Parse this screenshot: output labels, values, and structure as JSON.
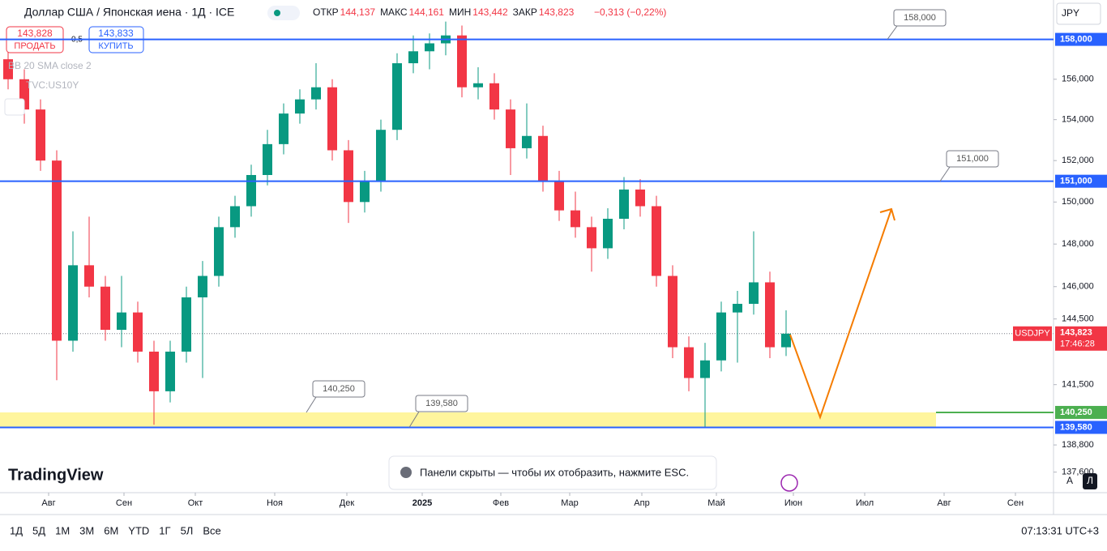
{
  "header": {
    "title": "Доллар США / Японская иена · 1Д · ICE",
    "stats": [
      {
        "label": "ОТКР",
        "value": "144,137"
      },
      {
        "label": "МАКС",
        "value": "144,161"
      },
      {
        "label": "МИН",
        "value": "143,442"
      },
      {
        "label": "ЗАКР",
        "value": "143,823"
      }
    ],
    "change": "−0,313 (−0,22%)",
    "sell": {
      "price": "143,828",
      "label": "ПРОДАТЬ"
    },
    "spread": "0,5",
    "buy": {
      "price": "143,833",
      "label": "КУПИТЬ"
    },
    "indicators": [
      "BB 20 SMA close 2",
      "TVC:US10Y"
    ],
    "currency": "JPY"
  },
  "toolbar": {
    "ranges": [
      "1Д",
      "5Д",
      "1М",
      "3М",
      "6М",
      "YTD",
      "1Г",
      "5Л",
      "Все"
    ],
    "clock": "07:13:31 UTC+3",
    "logo": "TradingView",
    "toast": "Панели скрыты — чтобы их отобразить, нажмите ESC.",
    "scale_buttons": [
      "A",
      "Л"
    ]
  },
  "chart_data": {
    "type": "candlestick",
    "log_scale": true,
    "up_color": "#089981",
    "down_color": "#f23645",
    "open": [
      157,
      156,
      154.5,
      152,
      143.5,
      147,
      146,
      144,
      144.8,
      143,
      141.2,
      143,
      145.5,
      146.5,
      148.8,
      149.8,
      151.3,
      152.8,
      154.3,
      155,
      155.6,
      152.5,
      150,
      151,
      153.5,
      156.8,
      157.4,
      157.8,
      158.2,
      155.6,
      155.8,
      154.5,
      152.6,
      153.2,
      151,
      149.6,
      148.8,
      147.8,
      149.2,
      150.6,
      149.8,
      146.5,
      143.2,
      141.8,
      142.6,
      144.8,
      145.2,
      146.2,
      143.2
    ],
    "high": [
      157.8,
      156.5,
      155,
      152.5,
      148.6,
      149.3,
      146.5,
      146.5,
      145.3,
      143.5,
      143.5,
      146,
      147.2,
      149.3,
      150.3,
      151.8,
      153.5,
      154.8,
      155.5,
      156.8,
      156,
      153,
      151.5,
      154,
      157.3,
      158.2,
      158.3,
      158.9,
      158.7,
      156.6,
      156.3,
      155,
      154.8,
      153.7,
      151.5,
      150.5,
      149.3,
      149.7,
      151.2,
      151.1,
      150.3,
      147,
      143.7,
      143.4,
      145.3,
      145.8,
      148.6,
      146.7,
      144.9
    ],
    "low": [
      155.5,
      153.8,
      151.5,
      141.7,
      143,
      145.5,
      143.5,
      143.2,
      142.5,
      139.7,
      140.7,
      142.5,
      141.8,
      146,
      148.3,
      149.3,
      150.8,
      152.3,
      153.8,
      154.5,
      152,
      149,
      149.5,
      150.5,
      153,
      156.3,
      156.5,
      157.2,
      155.1,
      155,
      154,
      151.3,
      152.1,
      150.5,
      149.1,
      148.3,
      146.7,
      147.3,
      148.7,
      149.3,
      146,
      142.7,
      141.2,
      139.6,
      142.1,
      142.5,
      144.7,
      142.7,
      142.8
    ],
    "close": [
      156,
      154.5,
      152,
      143.5,
      147,
      146,
      144,
      144.8,
      143,
      141.2,
      143,
      145.5,
      146.5,
      148.8,
      149.8,
      151.3,
      152.8,
      154.3,
      155,
      155.6,
      152.5,
      150,
      151,
      153.5,
      156.8,
      157.4,
      157.8,
      158.2,
      155.6,
      155.8,
      154.5,
      152.6,
      153.2,
      151,
      149.6,
      148.8,
      147.8,
      149.2,
      150.6,
      149.8,
      146.5,
      143.2,
      141.8,
      142.6,
      144.8,
      145.2,
      146.2,
      143.2,
      143.823
    ],
    "ylim": [
      136.7,
      160
    ],
    "yticks": [
      {
        "value": 156,
        "label": "156,000"
      },
      {
        "value": 154,
        "label": "154,000"
      },
      {
        "value": 152,
        "label": "152,000"
      },
      {
        "value": 150,
        "label": "150,000"
      },
      {
        "value": 148,
        "label": "148,000"
      },
      {
        "value": 146,
        "label": "146,000"
      },
      {
        "value": 144.5,
        "label": "144,500"
      },
      {
        "value": 141.5,
        "label": "141,500"
      },
      {
        "value": 138.8,
        "label": "138,800"
      },
      {
        "value": 137.6,
        "label": "137,600"
      }
    ],
    "xticks": [
      {
        "value": 2.5,
        "label": "Авг"
      },
      {
        "value": 7.15,
        "label": "Сен"
      },
      {
        "value": 11.55,
        "label": "Окт"
      },
      {
        "value": 16.45,
        "label": "Ноя"
      },
      {
        "value": 20.9,
        "label": "Дек"
      },
      {
        "value": 25.55,
        "label": "2025"
      },
      {
        "value": 30.4,
        "label": "Фев"
      },
      {
        "value": 34.65,
        "label": "Мар"
      },
      {
        "value": 39.1,
        "label": "Апр"
      },
      {
        "value": 43.7,
        "label": "Май"
      },
      {
        "value": 48.45,
        "label": "Июн"
      },
      {
        "value": 52.85,
        "label": "Июл"
      },
      {
        "value": 57.75,
        "label": "Авг"
      },
      {
        "value": 62.15,
        "label": "Сен"
      }
    ],
    "levels": [
      {
        "value": 158,
        "label": "158,000",
        "color": "#2962ff"
      },
      {
        "value": 151,
        "label": "151,000",
        "color": "#2962ff"
      },
      {
        "value": 140.25,
        "label": "140,250",
        "color": "#4caf50"
      },
      {
        "value": 139.58,
        "label": "139,580",
        "color": "#2962ff"
      }
    ],
    "zone": {
      "from": 139.58,
      "to": 140.25,
      "color": "#fff59d"
    },
    "last": {
      "value": 143.823,
      "label": "143,823",
      "symbol": "USDJPY",
      "countdown": "17:46:28",
      "color": "#f23645"
    }
  }
}
